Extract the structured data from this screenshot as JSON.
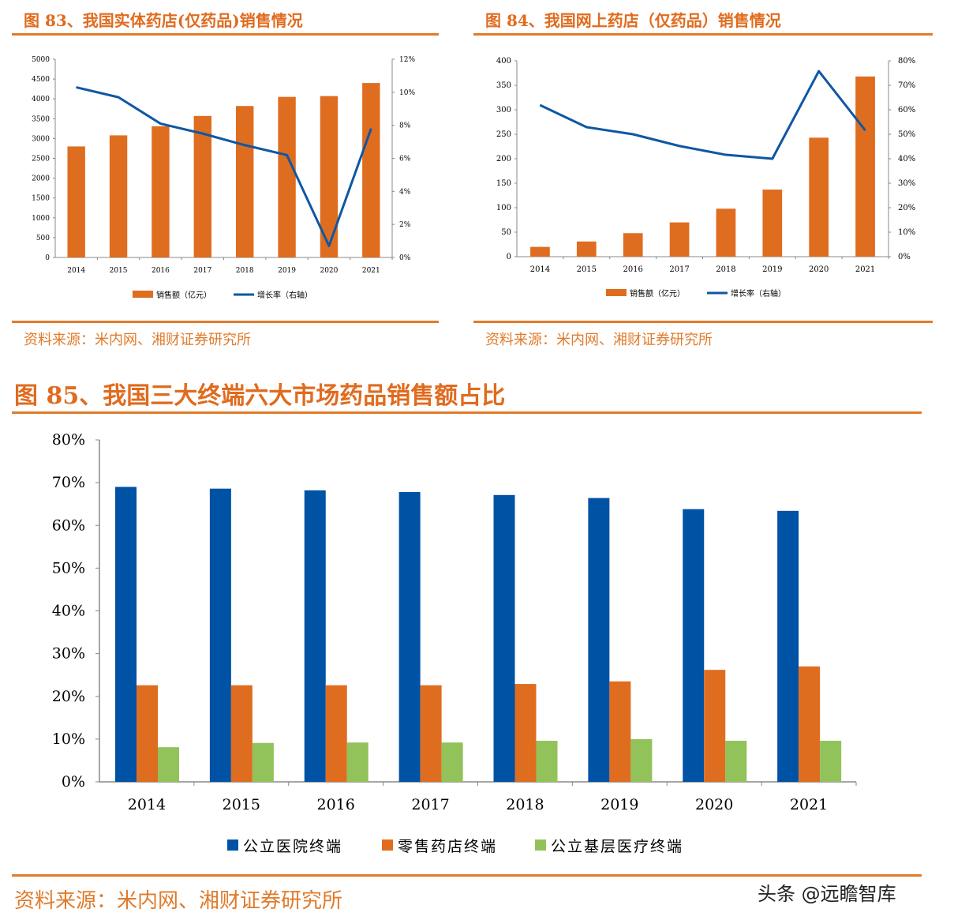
{
  "colors": {
    "accent": "#e07b2b",
    "bar_orange": "#df6d20",
    "line_blue": "#0f57a3",
    "blue": "#0052a5",
    "green": "#92c25a"
  },
  "fig83": {
    "title": "图 83、我国实体药店(仅药品)销售情况",
    "source": "资料来源：米内网、湘财证券研究所"
  },
  "fig84": {
    "title": "图 84、我国网上药店（仅药品）销售情况",
    "source": "资料来源：米内网、湘财证券研究所"
  },
  "fig85": {
    "title": "图 85、我国三大终端六大市场药品销售额占比",
    "source": "资料来源：米内网、湘财证券研究所"
  },
  "watermark": "头条 @远瞻智库",
  "chart_data": [
    {
      "type": "bar+line",
      "categories": [
        "2014",
        "2015",
        "2016",
        "2017",
        "2018",
        "2019",
        "2020",
        "2021"
      ],
      "series": [
        {
          "name": "销售额（亿元）",
          "type": "bar",
          "axis": "left",
          "values": [
            2800,
            3080,
            3310,
            3570,
            3820,
            4050,
            4070,
            4400
          ]
        },
        {
          "name": "增长率（右轴）",
          "type": "line",
          "axis": "right",
          "values": [
            10.3,
            9.7,
            8.1,
            7.5,
            6.8,
            6.2,
            0.7,
            7.8
          ]
        }
      ],
      "ylim": [
        0,
        5000
      ],
      "yticks": [
        "0",
        "500",
        "1000",
        "1500",
        "2000",
        "2500",
        "3000",
        "3500",
        "4000",
        "4500",
        "5000"
      ],
      "y2lim": [
        0,
        12
      ],
      "y2ticks": [
        "0%",
        "2%",
        "4%",
        "6%",
        "8%",
        "10%",
        "12%"
      ],
      "grid": false,
      "legend": "bottom"
    },
    {
      "type": "bar+line",
      "categories": [
        "2014",
        "2015",
        "2016",
        "2017",
        "2018",
        "2019",
        "2020",
        "2021"
      ],
      "series": [
        {
          "name": "销售额（亿元）",
          "type": "bar",
          "axis": "left",
          "values": [
            20,
            31,
            48,
            70,
            98,
            137,
            243,
            368
          ]
        },
        {
          "name": "增长率（右轴）",
          "type": "line",
          "axis": "right",
          "values": [
            61.9,
            52.9,
            50,
            45.2,
            41.6,
            40,
            75.8,
            51.6
          ]
        }
      ],
      "ylim": [
        0,
        400
      ],
      "yticks": [
        "0",
        "50",
        "100",
        "150",
        "200",
        "250",
        "300",
        "350",
        "400"
      ],
      "y2lim": [
        0,
        80
      ],
      "y2ticks": [
        "0%",
        "10%",
        "20%",
        "30%",
        "40%",
        "50%",
        "60%",
        "70%",
        "80%"
      ],
      "grid": false,
      "legend": "bottom"
    },
    {
      "type": "bar",
      "categories": [
        "2014",
        "2015",
        "2016",
        "2017",
        "2018",
        "2019",
        "2020",
        "2021"
      ],
      "series": [
        {
          "name": "公立医院终端",
          "values": [
            69.0,
            68.6,
            68.2,
            67.8,
            67.1,
            66.4,
            63.8,
            63.4
          ]
        },
        {
          "name": "零售药店终端",
          "values": [
            22.6,
            22.6,
            22.6,
            22.6,
            22.9,
            23.5,
            26.2,
            27.0
          ]
        },
        {
          "name": "公立基层医疗终端",
          "values": [
            8.1,
            9.1,
            9.2,
            9.2,
            9.6,
            10.0,
            9.6,
            9.6
          ]
        }
      ],
      "ylim": [
        0,
        80
      ],
      "yticks": [
        "0%",
        "10%",
        "20%",
        "30%",
        "40%",
        "50%",
        "60%",
        "70%",
        "80%"
      ],
      "grid": false,
      "legend": "bottom"
    }
  ]
}
